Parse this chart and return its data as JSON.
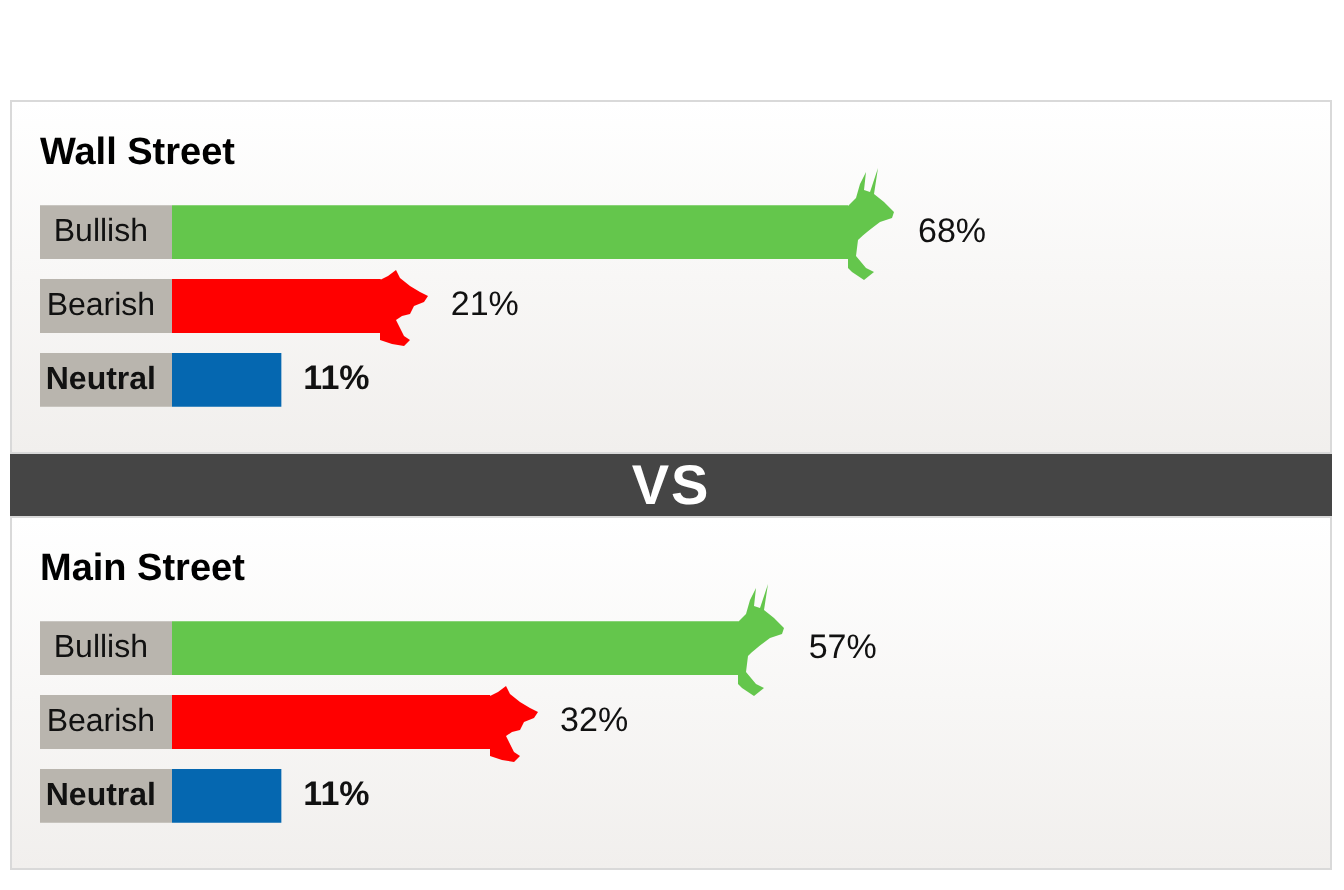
{
  "chart_data": [
    {
      "type": "bar",
      "orientation": "horizontal",
      "title": "Wall Street",
      "categories": [
        "Bullish",
        "Bearish",
        "Neutral"
      ],
      "values": [
        68,
        21,
        11
      ],
      "colors": [
        "#64c64c",
        "#ff0000",
        "#0567b0"
      ],
      "value_labels": [
        "68%",
        "21%",
        "11%"
      ],
      "tick_labels": "y"
    },
    {
      "type": "other",
      "title": "VS"
    },
    {
      "type": "bar",
      "orientation": "horizontal",
      "title": "Main Street",
      "categories": [
        "Bullish",
        "Bearish",
        "Neutral"
      ],
      "values": [
        57,
        32,
        11
      ],
      "colors": [
        "#64c64c",
        "#ff0000",
        "#0567b0"
      ],
      "value_labels": [
        "57%",
        "32%",
        "11%"
      ],
      "tick_labels": "y"
    }
  ]
}
